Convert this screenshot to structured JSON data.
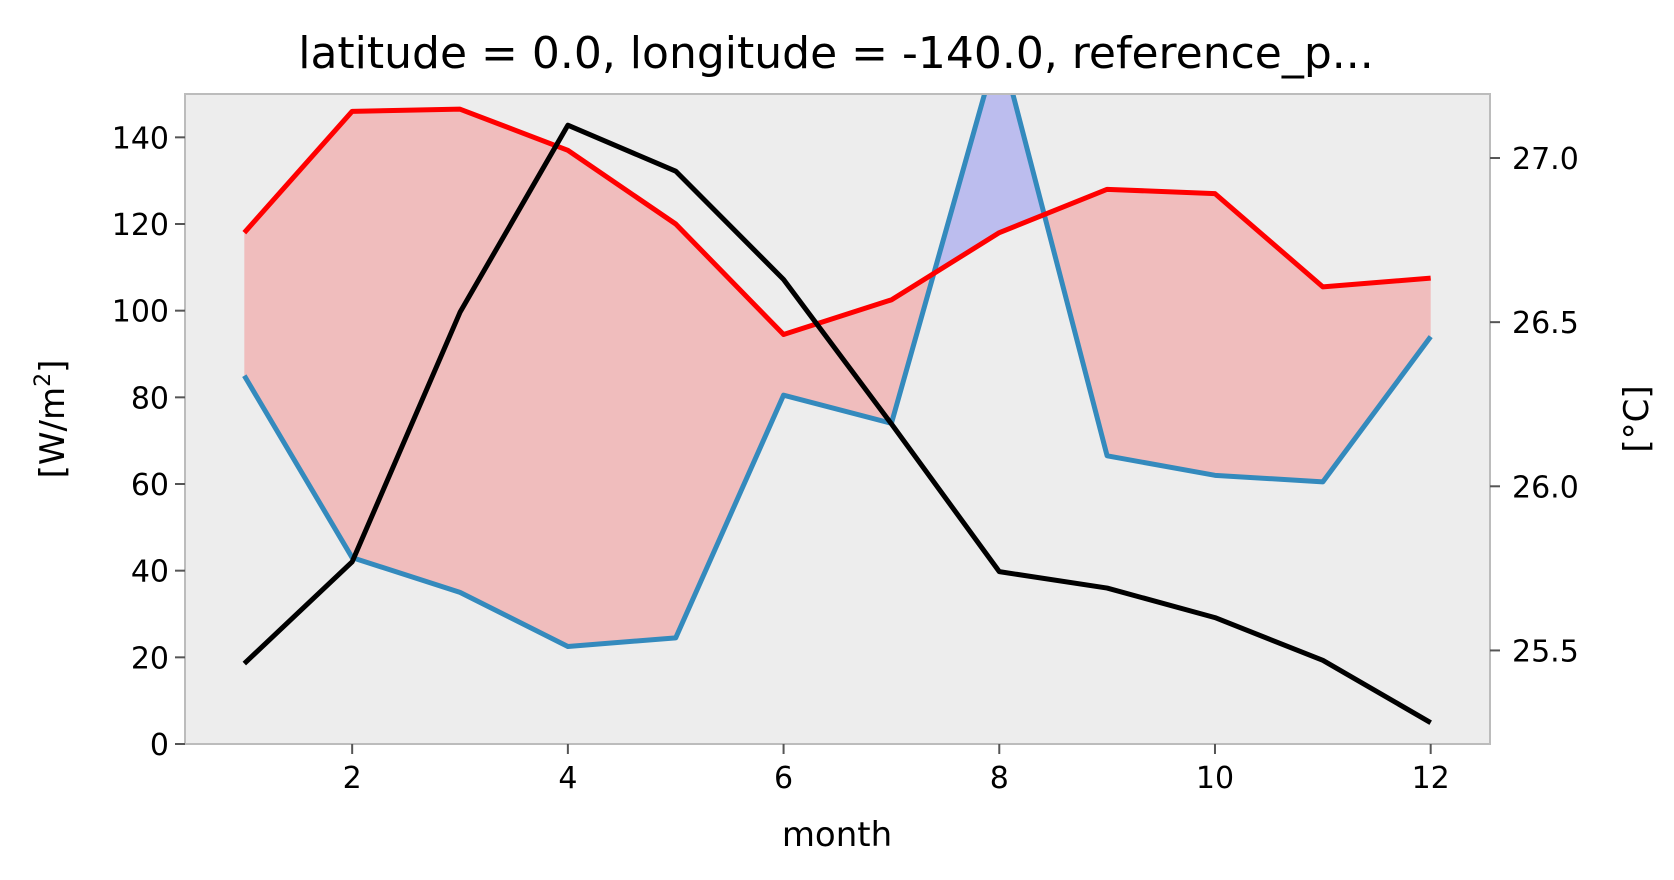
{
  "chart_data": {
    "type": "line",
    "title": "latitude = 0.0, longitude = -140.0, reference_p...",
    "xlabel": "month",
    "ylabel_left_base": "[W/m",
    "ylabel_left_sup": "2",
    "ylabel_left_tail": "]",
    "ylabel_right": "[°C]",
    "xlim": [
      0.45,
      12.55
    ],
    "ylim_left": [
      0,
      150
    ],
    "ylim_right": [
      25.215,
      27.195
    ],
    "x_ticks": [
      2,
      4,
      6,
      8,
      10,
      12
    ],
    "y_left_ticks": [
      0,
      20,
      40,
      60,
      80,
      100,
      120,
      140
    ],
    "y_right_ticks": [
      25.5,
      26.0,
      26.5,
      27.0
    ],
    "y_right_tick_labels": [
      "25.5",
      "26.0",
      "26.5",
      "27.0"
    ],
    "grid": false,
    "background": "#ededed",
    "x": [
      1,
      2,
      3,
      4,
      5,
      6,
      7,
      8,
      9,
      10,
      11,
      12
    ],
    "series": [
      {
        "axis": "left",
        "color": "#ff0000",
        "values": [
          118,
          146,
          146.5,
          137,
          120,
          94.5,
          102.5,
          118,
          128,
          127,
          105.5,
          107.5
        ]
      },
      {
        "axis": "left",
        "color": "#348abd",
        "values": [
          85,
          43,
          35,
          22.5,
          24.5,
          80.5,
          74,
          162,
          66.5,
          62,
          60.5,
          94
        ]
      },
      {
        "axis": "right",
        "color": "#000000",
        "values": [
          25.46,
          25.77,
          26.53,
          27.1,
          26.96,
          26.63,
          26.19,
          25.74,
          25.69,
          25.6,
          25.47,
          25.28
        ]
      }
    ],
    "fills": [
      {
        "between": [
          0,
          1
        ],
        "where": "first_above",
        "color": "#f0bdbd"
      },
      {
        "between": [
          0,
          1
        ],
        "where": "second_above",
        "color": "#bcbdee"
      }
    ]
  }
}
